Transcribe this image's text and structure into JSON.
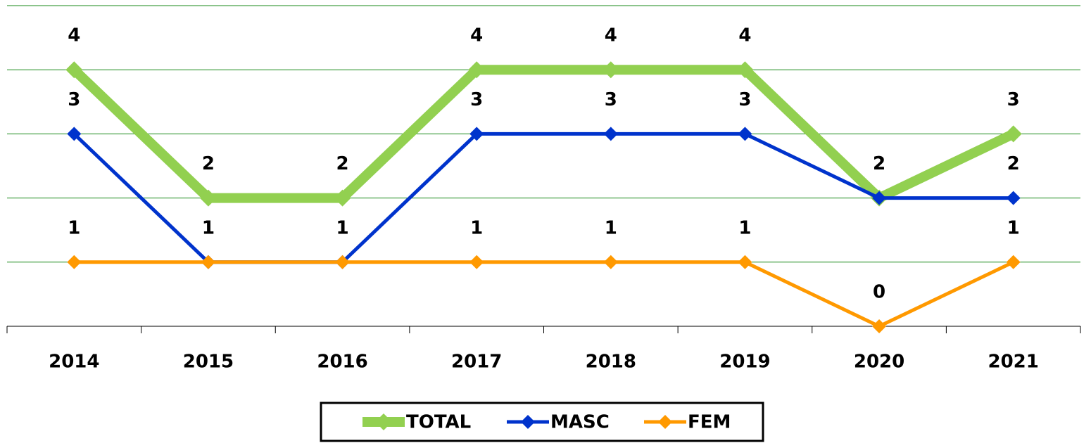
{
  "chart_data": {
    "type": "line",
    "categories": [
      "2014",
      "2015",
      "2016",
      "2017",
      "2018",
      "2019",
      "2020",
      "2021"
    ],
    "series": [
      {
        "name": "TOTAL",
        "color": "#92d050",
        "values": [
          4,
          2,
          2,
          4,
          4,
          4,
          2,
          3
        ]
      },
      {
        "name": "MASC",
        "color": "#0033cc",
        "values": [
          3,
          1,
          1,
          3,
          3,
          3,
          2,
          2
        ]
      },
      {
        "name": "FEM",
        "color": "#ff9900",
        "values": [
          1,
          1,
          1,
          1,
          1,
          1,
          0,
          1
        ]
      }
    ],
    "ylim": [
      0,
      5
    ],
    "yticks": [
      0,
      1,
      2,
      3,
      4,
      5
    ],
    "grid": true,
    "legend": "bottom"
  }
}
